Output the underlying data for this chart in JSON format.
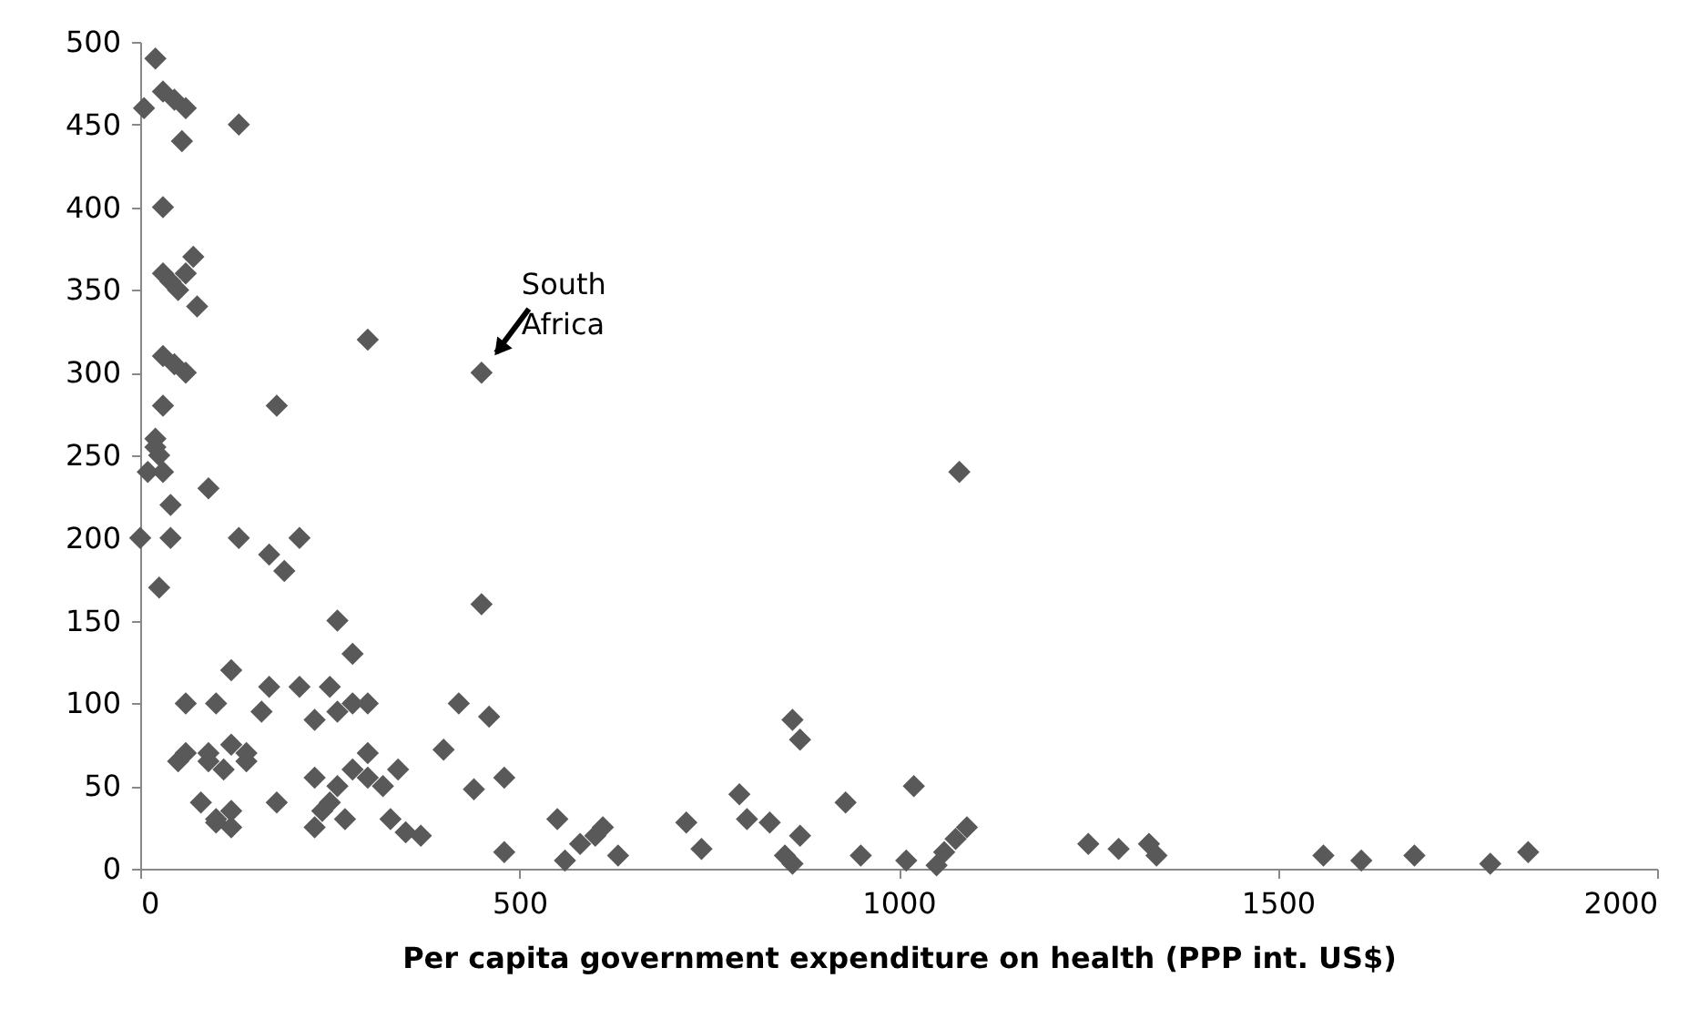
{
  "chart_data": {
    "type": "scatter",
    "xlabel": "Per capita government expenditure on health (PPP int.  US$)",
    "xlim": [
      0,
      2000
    ],
    "xticks": [
      0,
      500,
      1000,
      1500,
      2000
    ],
    "ylim": [
      0,
      500
    ],
    "yticks": [
      0,
      50,
      100,
      150,
      200,
      250,
      300,
      350,
      400,
      450,
      500
    ],
    "grid": false,
    "marker": "diamond",
    "annotations": [
      {
        "text": "South Africa",
        "x": 450,
        "y": 300
      }
    ],
    "series": [
      {
        "color": "#595959",
        "x": [
          20,
          5,
          30,
          45,
          60,
          55,
          130,
          30,
          30,
          40,
          50,
          60,
          70,
          75,
          30,
          45,
          60,
          180,
          300,
          450,
          30,
          20,
          10,
          25,
          30,
          40,
          0,
          40,
          25,
          90,
          130,
          170,
          190,
          210,
          20,
          450,
          260,
          280,
          120,
          60,
          100,
          170,
          210,
          250,
          280,
          300,
          420,
          460,
          160,
          230,
          260,
          400,
          480,
          440,
          90,
          120,
          140,
          110,
          80,
          100,
          120,
          180,
          230,
          260,
          280,
          300,
          320,
          340,
          50,
          60,
          90,
          230,
          250,
          270,
          300,
          330,
          350,
          370,
          480,
          140,
          100,
          120,
          240,
          550,
          560,
          580,
          600,
          610,
          630,
          720,
          740,
          790,
          800,
          830,
          850,
          860,
          870,
          870,
          860,
          930,
          950,
          1010,
          1020,
          1050,
          1060,
          1075,
          1090,
          1080,
          1250,
          1290,
          1330,
          1340,
          1560,
          1610,
          1680,
          1780,
          1830
        ],
        "values": [
          490,
          460,
          470,
          465,
          460,
          440,
          450,
          400,
          360,
          355,
          350,
          360,
          370,
          340,
          310,
          305,
          300,
          280,
          320,
          300,
          280,
          260,
          240,
          250,
          240,
          220,
          200,
          200,
          170,
          230,
          200,
          190,
          180,
          200,
          255,
          160,
          150,
          130,
          120,
          100,
          100,
          110,
          110,
          110,
          100,
          100,
          100,
          92,
          95,
          90,
          95,
          72,
          55,
          48,
          70,
          75,
          70,
          60,
          40,
          30,
          35,
          40,
          55,
          50,
          60,
          55,
          50,
          60,
          65,
          70,
          65,
          25,
          40,
          30,
          70,
          30,
          22,
          20,
          10,
          65,
          28,
          25,
          35,
          30,
          5,
          15,
          20,
          25,
          8,
          28,
          12,
          45,
          30,
          28,
          8,
          90,
          78,
          20,
          3,
          40,
          8,
          5,
          50,
          2,
          10,
          18,
          25,
          240,
          15,
          12,
          15,
          8,
          8,
          5,
          8,
          3,
          10
        ]
      }
    ]
  }
}
